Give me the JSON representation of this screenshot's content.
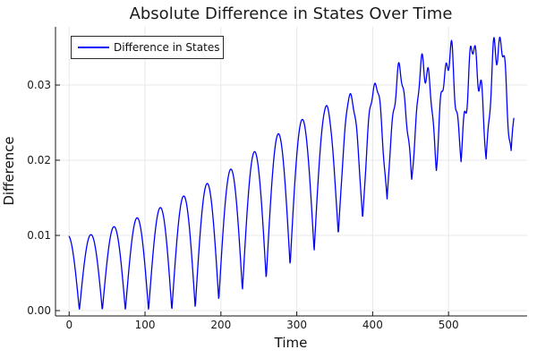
{
  "chart_data": {
    "type": "line",
    "title": "Absolute Difference in States Over Time",
    "xlabel": "Time",
    "ylabel": "Difference",
    "grid": true,
    "legend": {
      "position": "top-left",
      "entries": [
        {
          "label": "Difference in States",
          "color": "#0000ff"
        }
      ]
    },
    "xlim": [
      -18,
      603.6
    ],
    "ylim": [
      -0.00071,
      0.03774
    ],
    "xticks": {
      "values": [
        0,
        100,
        200,
        300,
        400,
        500
      ],
      "labels": [
        "0",
        "100",
        "200",
        "300",
        "400",
        "500"
      ]
    },
    "yticks": {
      "values": [
        0,
        0.01,
        0.02,
        0.03
      ],
      "labels": [
        "0.00",
        "0.01",
        "0.02",
        "0.03"
      ]
    },
    "series": [
      {
        "name": "Difference in States",
        "color": "#0000ff",
        "peaks_observed": [
          [
            29,
            0.0101
          ],
          [
            60,
            0.0112
          ],
          [
            91,
            0.0124
          ],
          [
            120,
            0.0137
          ],
          [
            150,
            0.0152
          ],
          [
            180,
            0.0168
          ],
          [
            210,
            0.0186
          ],
          [
            245,
            0.0212
          ],
          [
            278,
            0.0237
          ],
          [
            310,
            0.0256
          ],
          [
            342,
            0.0273
          ],
          [
            373,
            0.0287
          ],
          [
            405,
            0.0302
          ],
          [
            437,
            0.0315
          ],
          [
            470,
            0.033
          ],
          [
            502,
            0.0338
          ],
          [
            533,
            0.0343
          ],
          [
            565,
            0.0368
          ]
        ],
        "minima_observed": [
          [
            14,
            0.0004
          ],
          [
            44,
            0.0005
          ],
          [
            74,
            0.0006
          ],
          [
            105,
            0.0008
          ],
          [
            135,
            0.001
          ],
          [
            165,
            0.0012
          ],
          [
            196,
            0.0016
          ],
          [
            227,
            0.0022
          ],
          [
            258,
            0.0035
          ],
          [
            296,
            0.0055
          ],
          [
            328,
            0.008
          ],
          [
            360,
            0.0102
          ],
          [
            393,
            0.0125
          ],
          [
            422,
            0.0151
          ],
          [
            455,
            0.0163
          ],
          [
            486,
            0.0175
          ],
          [
            518,
            0.0187
          ],
          [
            586,
            0.0201
          ]
        ],
        "generator": {
          "tmax": 586,
          "step": 0.5,
          "phase": 13.5,
          "period": 30.1,
          "period_drift": 0.0026,
          "envelope": [
            [
              0,
              0.01
            ],
            [
              29,
              0.0101
            ],
            [
              60,
              0.0112
            ],
            [
              91,
              0.0124
            ],
            [
              120,
              0.0137
            ],
            [
              150,
              0.0152
            ],
            [
              180,
              0.0168
            ],
            [
              210,
              0.0186
            ],
            [
              245,
              0.0212
            ],
            [
              278,
              0.0237
            ],
            [
              310,
              0.0256
            ],
            [
              342,
              0.0273
            ],
            [
              373,
              0.0287
            ],
            [
              405,
              0.0302
            ],
            [
              437,
              0.0315
            ],
            [
              470,
              0.033
            ],
            [
              502,
              0.0338
            ],
            [
              533,
              0.0343
            ],
            [
              560,
              0.036
            ],
            [
              586,
              0.0355
            ]
          ],
          "floor_t0": 155,
          "floor_span": 560,
          "floor_max": 0.58,
          "jitter_t0": 330,
          "jitter_ramp": 180,
          "jitter_amp": 0.1,
          "jf1": 0.63,
          "jp1": 1.2,
          "jf2": 0.171,
          "ymin_clip": 0.0002,
          "ymax_clip": 0.0368
        }
      }
    ],
    "styles": {
      "line_color": "#0000ff",
      "grid_color": "#e8e8e8",
      "spine_color": "#141414",
      "tick_color": "#141414",
      "text_color": "#1a1a1a",
      "legend_border": "#2b2b2b",
      "background": "#ffffff"
    }
  }
}
